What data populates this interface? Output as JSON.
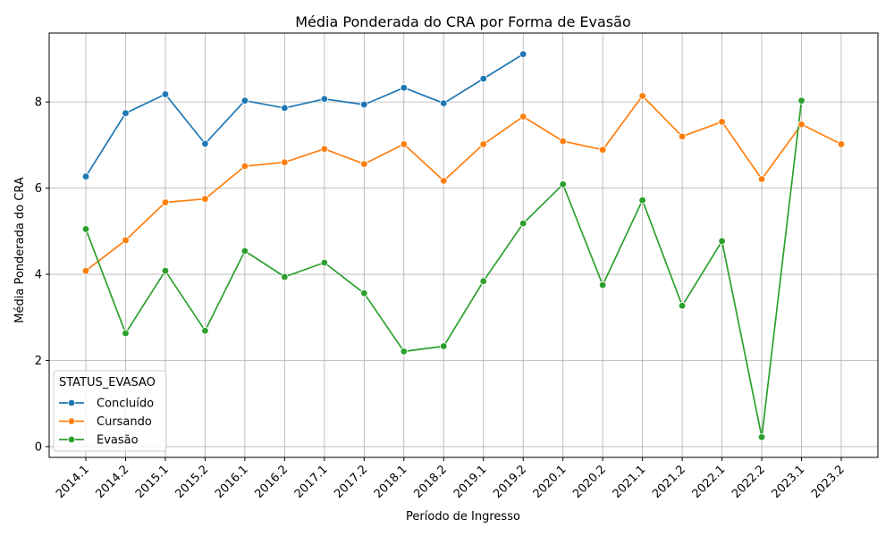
{
  "chart_data": {
    "type": "line",
    "title": "Média Ponderada do CRA por Forma de Evasão",
    "xlabel": "Período de Ingresso",
    "ylabel": "Média Ponderada do CRA",
    "categories": [
      "2014.1",
      "2014.2",
      "2015.1",
      "2015.2",
      "2016.1",
      "2016.2",
      "2017.1",
      "2017.2",
      "2018.1",
      "2018.2",
      "2019.1",
      "2019.2",
      "2020.1",
      "2020.2",
      "2021.1",
      "2021.2",
      "2022.1",
      "2022.2",
      "2023.1",
      "2023.2"
    ],
    "ylim": [
      -0.25,
      9.6
    ],
    "yticks": [
      0,
      2,
      4,
      6,
      8
    ],
    "grid": true,
    "legend": {
      "title": "STATUS_EVASAO",
      "position": "lower-left"
    },
    "series": [
      {
        "name": "Concluído",
        "color": "#1f77b4",
        "values": [
          6.27,
          7.74,
          8.18,
          7.03,
          8.03,
          7.86,
          8.07,
          7.94,
          8.33,
          7.97,
          8.54,
          9.11,
          null,
          null,
          null,
          null,
          null,
          null,
          null,
          null
        ]
      },
      {
        "name": "Cursando",
        "color": "#ff7f0e",
        "values": [
          4.08,
          4.79,
          5.67,
          5.75,
          6.51,
          6.6,
          6.91,
          6.56,
          7.02,
          6.17,
          7.02,
          7.66,
          7.09,
          6.89,
          8.14,
          7.2,
          7.54,
          6.21,
          7.48,
          7.02
        ]
      },
      {
        "name": "Evasão",
        "color": "#2ca02c",
        "values": [
          5.05,
          2.63,
          4.08,
          2.69,
          4.54,
          3.94,
          4.27,
          3.56,
          2.21,
          2.33,
          3.84,
          5.18,
          6.09,
          3.75,
          5.72,
          3.27,
          4.77,
          0.22,
          8.03,
          null
        ]
      }
    ]
  }
}
